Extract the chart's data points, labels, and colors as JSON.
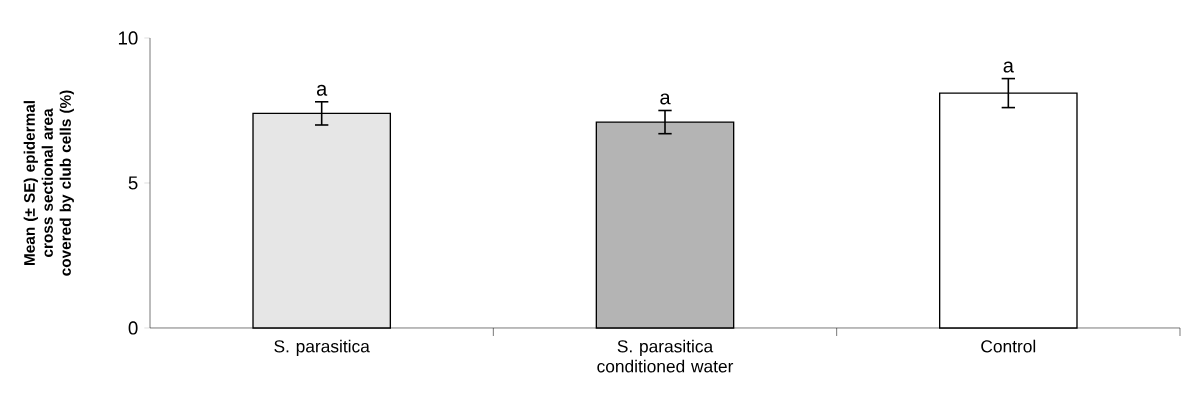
{
  "chart_data": {
    "type": "bar",
    "ylabel": "Mean (± SE) epidermal cross sectional area covered by club cells (%)",
    "categories": [
      "S. parasitica",
      "S. parasitica conditioned water",
      "Control"
    ],
    "values": [
      7.4,
      7.1,
      8.1
    ],
    "errors": [
      0.4,
      0.4,
      0.5
    ],
    "colors": [
      "#e6e6e6",
      "#b4b4b4",
      "#ffffff"
    ],
    "ylim": [
      0,
      10
    ],
    "yticks": [
      0,
      5,
      10
    ],
    "grid": false,
    "annotations": [
      {
        "text": "a",
        "x": "S. parasitica",
        "y": 7.8
      },
      {
        "text": "a",
        "x": "S. parasitica conditioned water",
        "y": 7.5
      },
      {
        "text": "a",
        "x": "Control",
        "y": 8.6
      }
    ]
  }
}
